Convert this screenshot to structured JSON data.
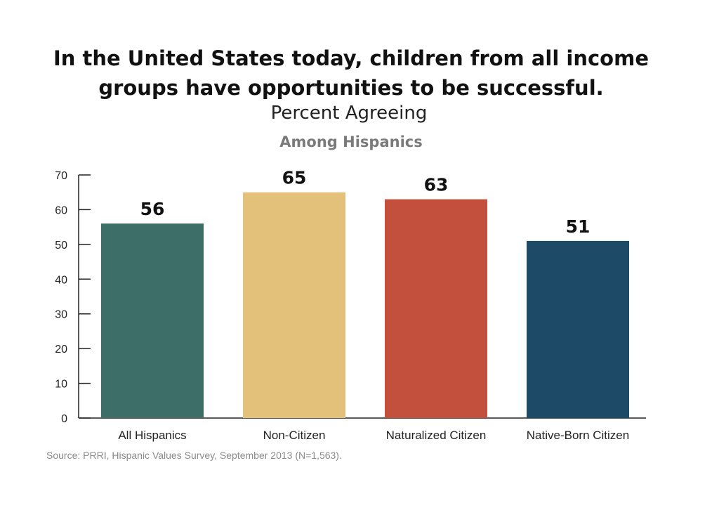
{
  "chart_data": {
    "type": "bar",
    "title_lines": [
      "In the United States today, children from all income",
      "groups have opportunities to be successful."
    ],
    "subtitle": "Percent Agreeing",
    "group_label": "Among Hispanics",
    "categories": [
      "All Hispanics",
      "Non-Citizen",
      "Naturalized Citizen",
      "Native-Born Citizen"
    ],
    "values": [
      56,
      65,
      63,
      51
    ],
    "data_labels": [
      "56",
      "65",
      "63",
      "51"
    ],
    "colors": [
      "#3e6e68",
      "#e4c17b",
      "#c34f3d",
      "#1d4b67"
    ],
    "ylim": [
      0,
      70
    ],
    "yticks": [
      0,
      10,
      20,
      30,
      40,
      50,
      60,
      70
    ],
    "grid": false,
    "xlabel": "",
    "ylabel": ""
  },
  "source": "Source: PRRI, Hispanic Values Survey, September 2013 (N=1,563)."
}
